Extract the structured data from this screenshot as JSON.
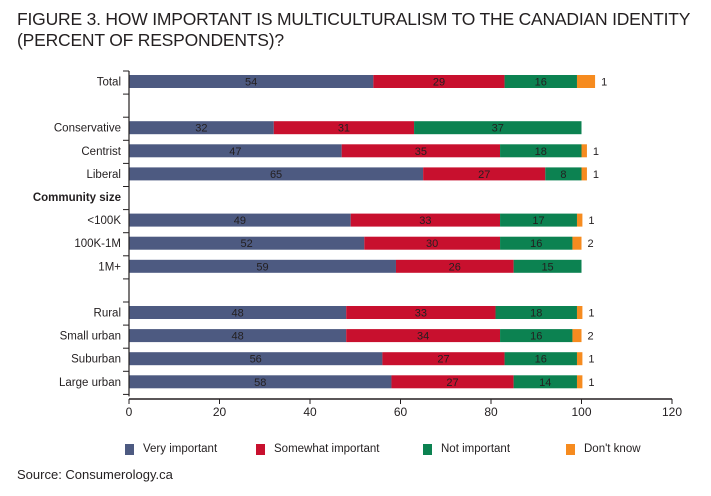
{
  "title": "FIGURE 3. HOW IMPORTANT IS MULTICULTURALISM TO THE CANADIAN IDENTITY (PERCENT OF RESPONDENTS)?",
  "source": "Source: Consumerology.ca",
  "chart_data": {
    "type": "bar",
    "orientation": "horizontal",
    "stacked": true,
    "title": "FIGURE 3. HOW IMPORTANT IS MULTICULTURALISM TO THE CANADIAN IDENTITY (PERCENT OF RESPONDENTS)?",
    "xlabel": "",
    "ylabel": "",
    "xlim": [
      0,
      120
    ],
    "xticks": [
      0,
      20,
      40,
      60,
      80,
      100,
      120
    ],
    "grid": false,
    "legend_position": "bottom",
    "categories": [
      "Total",
      "",
      "Conservative",
      "Centrist",
      "Liberal",
      "Community size",
      "<100K",
      "100K-1M",
      "1M+",
      "",
      "Rural",
      "Small urban",
      "Suburban",
      "Large urban"
    ],
    "header_categories": [
      "Community size"
    ],
    "series": [
      {
        "name": "Very important",
        "color": "#4d5a81",
        "values": [
          54,
          null,
          32,
          47,
          65,
          null,
          49,
          52,
          59,
          null,
          48,
          48,
          56,
          58
        ]
      },
      {
        "name": "Somewhat important",
        "color": "#c8102e",
        "values": [
          29,
          null,
          31,
          35,
          27,
          null,
          33,
          30,
          26,
          null,
          33,
          34,
          27,
          27
        ]
      },
      {
        "name": "Not important",
        "color": "#0c8251",
        "values": [
          16,
          null,
          37,
          18,
          8,
          null,
          17,
          16,
          15,
          null,
          18,
          16,
          16,
          14
        ]
      },
      {
        "name": "Don't know",
        "color": "#f68b1f",
        "values": [
          1,
          null,
          null,
          1,
          1,
          null,
          1,
          2,
          null,
          null,
          1,
          2,
          1,
          1
        ]
      }
    ]
  }
}
